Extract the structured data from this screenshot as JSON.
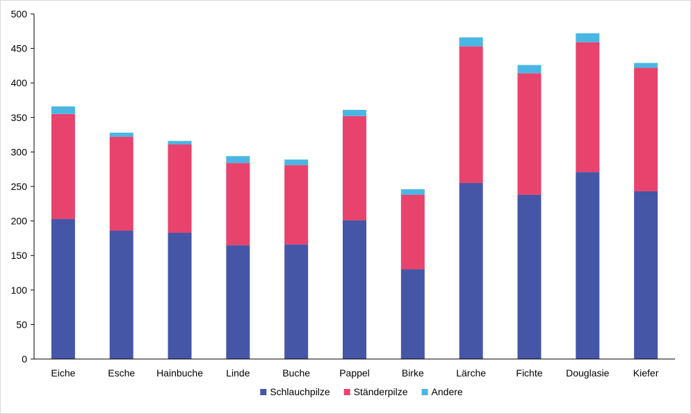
{
  "chart_data": {
    "type": "bar",
    "stacked": true,
    "title": "",
    "xlabel": "",
    "ylabel": "",
    "ylim": [
      0,
      500
    ],
    "yticks": [
      0,
      50,
      100,
      150,
      200,
      250,
      300,
      350,
      400,
      450,
      500
    ],
    "grid": false,
    "legend_position": "bottom",
    "categories": [
      "Eiche",
      "Esche",
      "Hainbuche",
      "Linde",
      "Buche",
      "Pappel",
      "Birke",
      "Lärche",
      "Fichte",
      "Douglasie",
      "Kiefer"
    ],
    "series": [
      {
        "name": "Schlauchpilze",
        "color": "#4656a6",
        "values": [
          203,
          186,
          183,
          165,
          166,
          201,
          130,
          255,
          238,
          271,
          243
        ]
      },
      {
        "name": "Ständerpilze",
        "color": "#e8436d",
        "values": [
          152,
          136,
          128,
          119,
          115,
          151,
          108,
          198,
          176,
          188,
          179
        ]
      },
      {
        "name": "Andere",
        "color": "#4ab6e3",
        "values": [
          11,
          6,
          5,
          10,
          8,
          9,
          8,
          13,
          12,
          13,
          7
        ]
      }
    ]
  }
}
